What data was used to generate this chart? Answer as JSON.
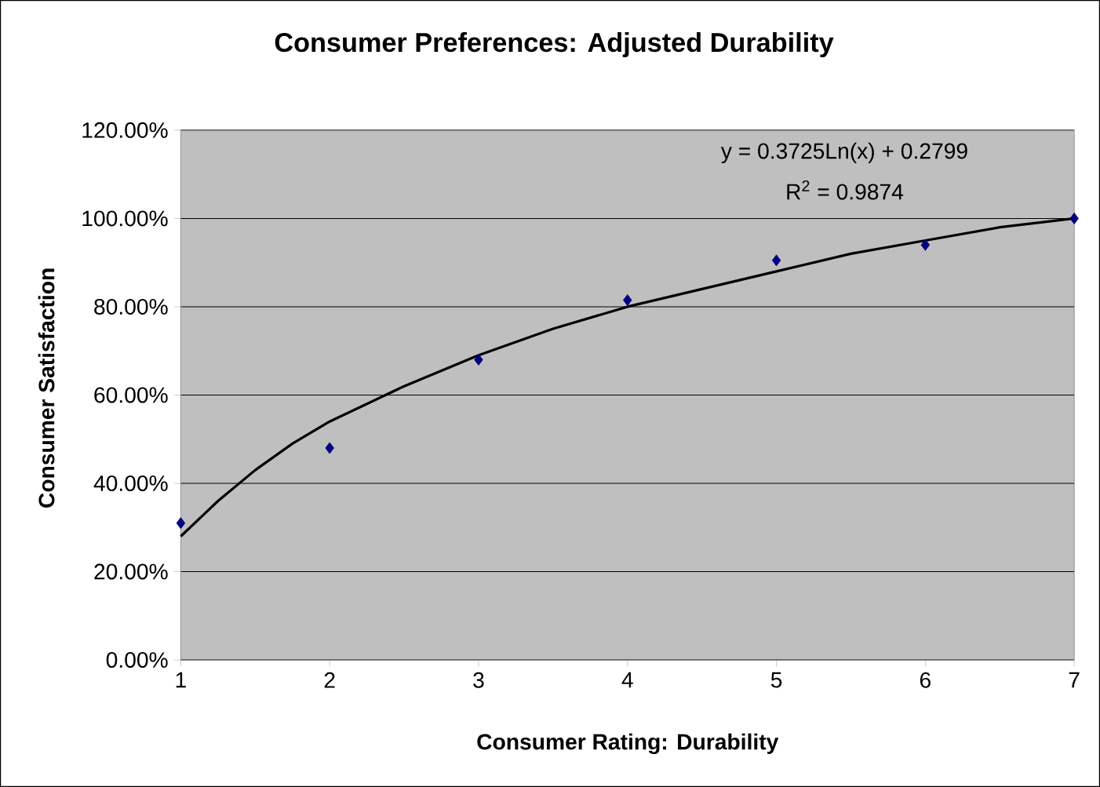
{
  "chart_data": {
    "type": "scatter",
    "title": "Consumer Preferences: Adjusted Durability",
    "xlabel": "Consumer Rating: Durability",
    "ylabel": "Consumer Satisfaction",
    "x": [
      1,
      2,
      3,
      4,
      5,
      6,
      7
    ],
    "series": [
      {
        "color": "#000080",
        "marker": "diamond",
        "values": [
          0.31,
          0.48,
          0.68,
          0.815,
          0.905,
          0.94,
          1.0
        ]
      },
      {
        "type": "line",
        "color": "#000000",
        "marker": "none",
        "x": [
          1,
          1.25,
          1.5,
          1.75,
          2,
          2.5,
          3,
          3.5,
          4,
          4.5,
          5,
          5.5,
          6,
          6.5,
          7
        ],
        "values": [
          0.28,
          0.36,
          0.43,
          0.49,
          0.54,
          0.62,
          0.69,
          0.75,
          0.8,
          0.84,
          0.88,
          0.92,
          0.95,
          0.98,
          1.0
        ]
      }
    ],
    "xlim": [
      1,
      7
    ],
    "xticks": [
      1,
      2,
      3,
      4,
      5,
      6,
      7
    ],
    "ylim": [
      0,
      1.2
    ],
    "yticks": [
      {
        "value": 0,
        "label": "0.00%"
      },
      {
        "value": 0.2,
        "label": "20.00%"
      },
      {
        "value": 0.4,
        "label": "40.00%"
      },
      {
        "value": 0.6,
        "label": "60.00%"
      },
      {
        "value": 0.8,
        "label": "80.00%"
      },
      {
        "value": 1.0,
        "label": "100.00%"
      },
      {
        "value": 1.2,
        "label": "120.00%"
      }
    ],
    "grid": "y",
    "annotations": [
      "y = 0.3725Ln(x) + 0.2799",
      "R$^{2}$ = 0.9874"
    ]
  }
}
